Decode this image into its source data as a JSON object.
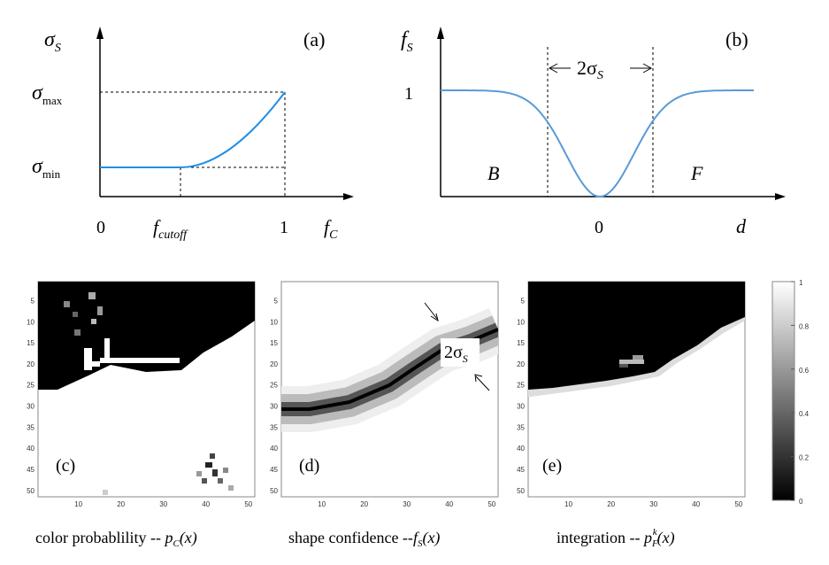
{
  "panel_a": {
    "tag": "(a)",
    "y_symbol": "σ",
    "y_sub": "S",
    "y_max_symbol": "σ",
    "y_max_sub": "max",
    "y_min_symbol": "σ",
    "y_min_sub": "min",
    "x_zero": "0",
    "x_cutoff_symbol": "f",
    "x_cutoff_sub": "cutoff",
    "x_one": "1",
    "x_symbol": "f",
    "x_sub": "C",
    "curve_color": "#1f8fe6"
  },
  "panel_b": {
    "tag": "(b)",
    "y_symbol": "f",
    "y_sub": "S",
    "y_one": "1",
    "width_label": "2σ",
    "width_sub": "S",
    "left_region": "B",
    "right_region": "F",
    "x_zero": "0",
    "x_symbol": "d",
    "curve_color": "#5a9ad6"
  },
  "heatmaps": {
    "tick_labels_y": [
      "5",
      "10",
      "15",
      "20",
      "25",
      "30",
      "35",
      "40",
      "45",
      "50"
    ],
    "tick_labels_x": [
      "10",
      "20",
      "30",
      "40",
      "50"
    ],
    "c": {
      "tag": "(c)",
      "caption": "color probablility -- ",
      "caption_math": "p",
      "caption_sub": "C",
      "caption_arg": "(x)"
    },
    "d": {
      "tag": "(d)",
      "caption": "shape confidence --",
      "caption_math": "f",
      "caption_sub": "S",
      "caption_arg": "(x)",
      "annotation": "2σ",
      "annotation_sub": "S"
    },
    "e": {
      "tag": "(e)",
      "caption": "integration -- ",
      "caption_math": "p",
      "caption_sub": "F",
      "caption_sup": "k",
      "caption_arg": "(x)"
    }
  },
  "colorbar": {
    "labels": [
      "1",
      "0.8",
      "0.6",
      "0.4",
      "0.2",
      "0"
    ]
  }
}
